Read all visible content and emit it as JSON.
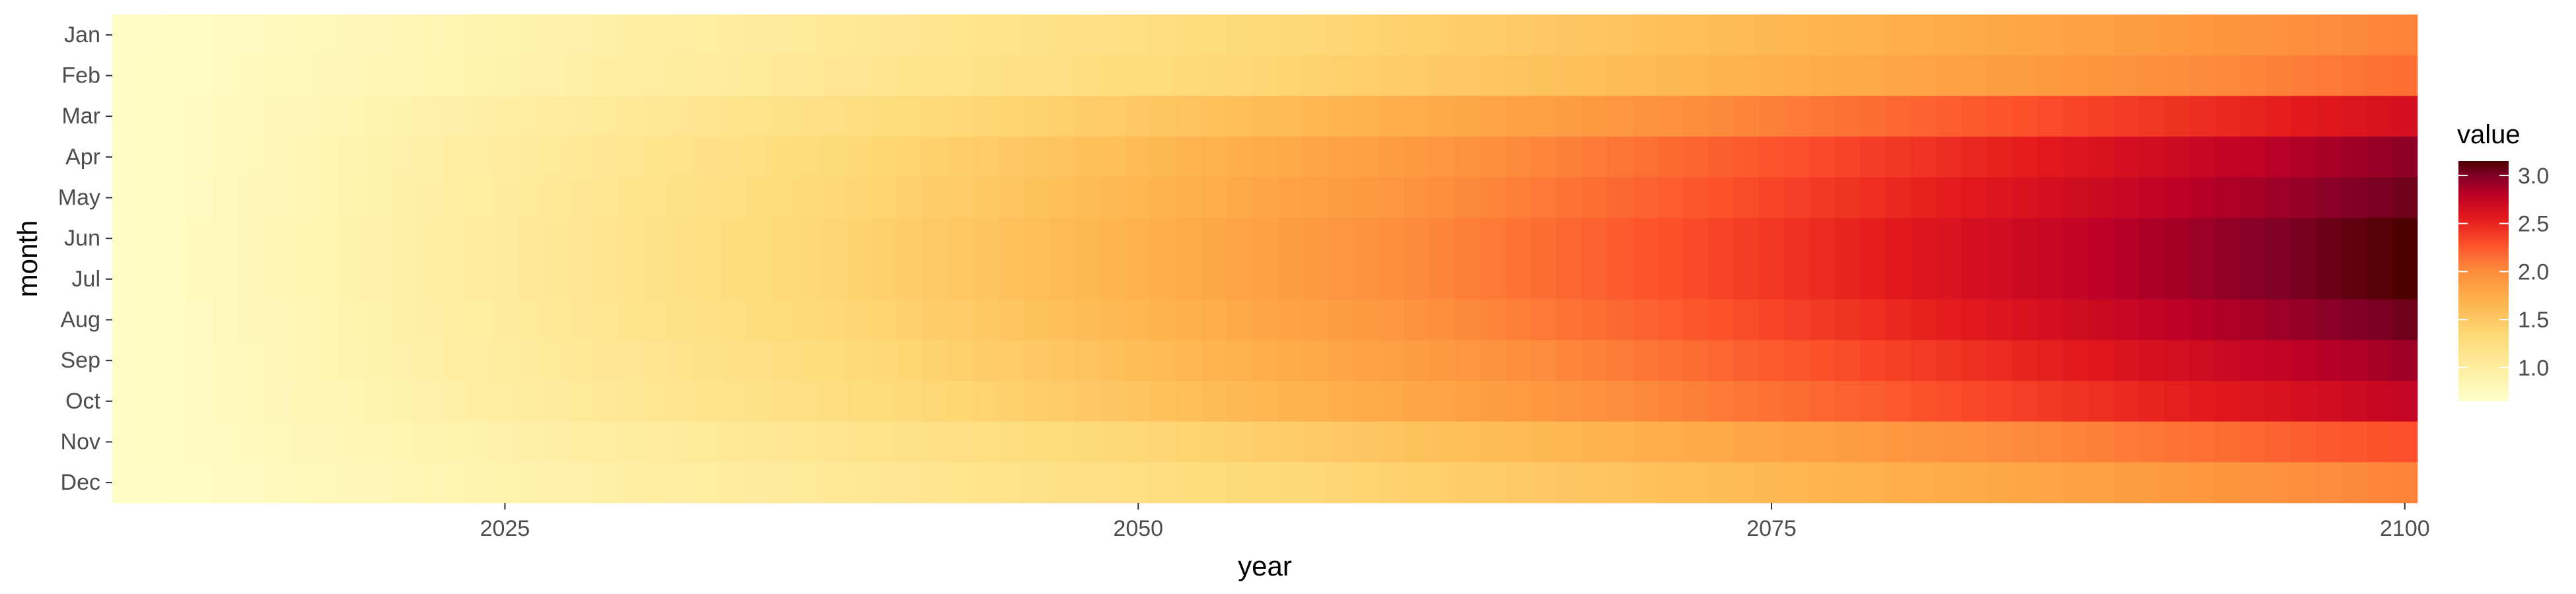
{
  "chart_data": {
    "type": "heatmap",
    "title": "",
    "xlabel": "year",
    "ylabel": "month",
    "x_range": [
      2010,
      2100
    ],
    "x_ticks": [
      2025,
      2050,
      2075,
      2100
    ],
    "x_tick_labels": [
      "2025",
      "2050",
      "2075",
      "2100"
    ],
    "months": [
      "Jan",
      "Feb",
      "Mar",
      "Apr",
      "May",
      "Jun",
      "Jul",
      "Aug",
      "Sep",
      "Oct",
      "Nov",
      "Dec"
    ],
    "month_peak_values_2100": [
      2.05,
      2.15,
      2.65,
      2.95,
      3.05,
      3.15,
      3.15,
      3.05,
      2.9,
      2.75,
      2.3,
      2.05
    ],
    "start_value": 0.7,
    "trend_exponent": 1.1,
    "legend": {
      "title": "value",
      "ticks": [
        1.0,
        1.5,
        2.0,
        2.5,
        3.0
      ],
      "tick_labels": [
        "1.0",
        "1.5",
        "2.0",
        "2.5",
        "3.0"
      ],
      "min": 0.65,
      "max": 3.15,
      "position": "right"
    },
    "color_scale": {
      "name": "YlOrRd",
      "stops": [
        {
          "value": 0.65,
          "color": "#ffffcc"
        },
        {
          "value": 1.0,
          "color": "#ffeda0"
        },
        {
          "value": 1.35,
          "color": "#fed976"
        },
        {
          "value": 1.7,
          "color": "#feb24c"
        },
        {
          "value": 2.0,
          "color": "#fd8d3c"
        },
        {
          "value": 2.3,
          "color": "#fc4e2a"
        },
        {
          "value": 2.55,
          "color": "#e31a1c"
        },
        {
          "value": 2.8,
          "color": "#bd0026"
        },
        {
          "value": 3.0,
          "color": "#800026"
        },
        {
          "value": 3.15,
          "color": "#4d0000"
        }
      ]
    },
    "grid": true
  }
}
